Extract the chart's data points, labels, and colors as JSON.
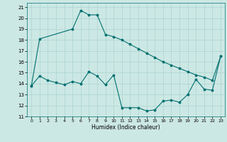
{
  "xlabel": "Humidex (Indice chaleur)",
  "bg_color": "#cce8e4",
  "grid_color": "#aad4d0",
  "line_color": "#007070",
  "xlim": [
    -0.5,
    23.5
  ],
  "ylim": [
    11,
    21.4
  ],
  "xticks": [
    0,
    1,
    2,
    3,
    4,
    5,
    6,
    7,
    8,
    9,
    10,
    11,
    12,
    13,
    14,
    15,
    16,
    17,
    18,
    19,
    20,
    21,
    22,
    23
  ],
  "yticks": [
    11,
    12,
    13,
    14,
    15,
    16,
    17,
    18,
    19,
    20,
    21
  ],
  "series1_x": [
    0,
    1,
    5,
    6,
    7,
    8,
    9,
    10,
    11,
    12,
    13,
    14,
    15,
    16,
    17,
    18,
    19,
    20,
    21,
    22,
    23
  ],
  "series1_y": [
    13.8,
    18.1,
    19.0,
    20.7,
    20.3,
    20.3,
    18.5,
    18.3,
    18.0,
    17.6,
    17.2,
    16.8,
    16.4,
    16.0,
    15.7,
    15.4,
    15.1,
    14.8,
    14.6,
    14.3,
    16.5
  ],
  "series2_x": [
    0,
    1,
    2,
    3,
    4,
    5,
    6,
    7,
    8,
    9,
    10,
    11,
    12,
    13,
    14,
    15,
    16,
    17,
    18,
    19,
    20,
    21,
    22,
    23
  ],
  "series2_y": [
    13.8,
    14.7,
    14.3,
    14.1,
    13.9,
    14.2,
    14.0,
    15.1,
    14.7,
    13.9,
    14.8,
    11.8,
    11.8,
    11.8,
    11.5,
    11.6,
    12.4,
    12.5,
    12.3,
    13.0,
    14.4,
    13.5,
    13.4,
    16.5
  ]
}
